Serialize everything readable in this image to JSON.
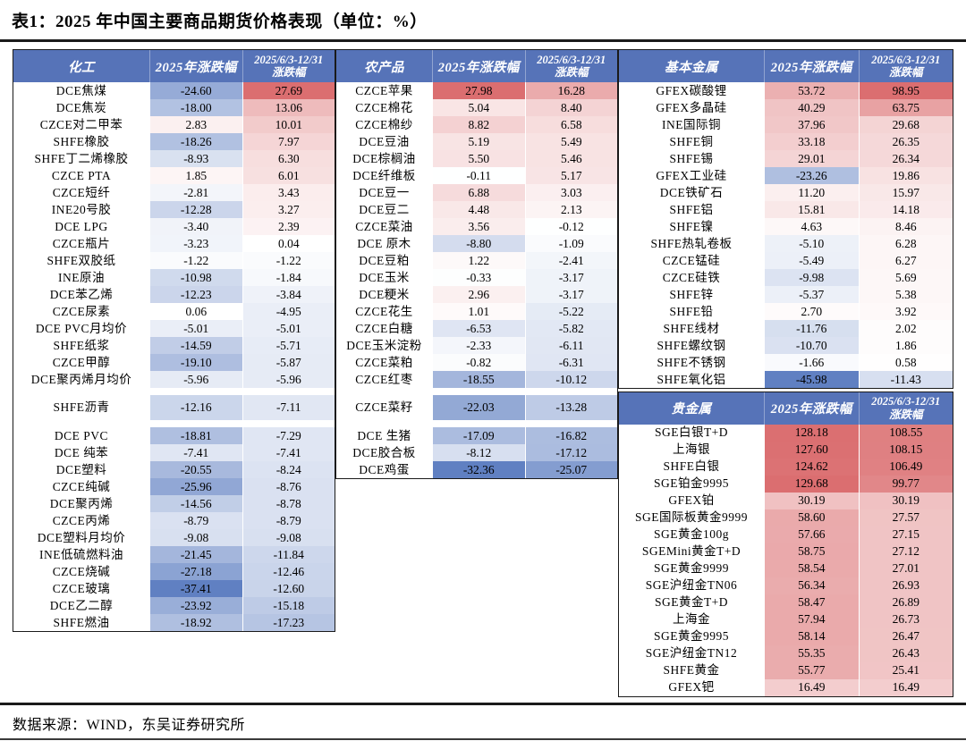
{
  "title": "表1：2025 年中国主要商品期货价格表现（单位：%）",
  "source": "数据来源：WIND，东吴证券研究所",
  "headers": {
    "change_2025": "2025年涨跌幅",
    "change_period_line1": "2025/6/3-12/31",
    "change_period_line2": "涨跌幅"
  },
  "colors": {
    "header_bg": "#5673B8",
    "positive_max": "#DB6E70",
    "negative_max": "#6080C2",
    "border": "#1A1A1A"
  },
  "tables": [
    {
      "name": "化工",
      "rows": [
        [
          "DCE焦煤",
          "-24.60",
          "27.69"
        ],
        [
          "DCE焦炭",
          "-18.00",
          "13.06"
        ],
        [
          "CZCE对二甲苯",
          "2.83",
          "10.01"
        ],
        [
          "SHFE橡胶",
          "-18.26",
          "7.97"
        ],
        [
          "SHFE丁二烯橡胶",
          "-8.93",
          "6.30"
        ],
        [
          "CZCE PTA",
          "1.85",
          "6.01"
        ],
        [
          "CZCE短纤",
          "-2.81",
          "3.43"
        ],
        [
          "INE20号胶",
          "-12.28",
          "3.27"
        ],
        [
          "DCE LPG",
          "-3.40",
          "2.39"
        ],
        [
          "CZCE瓶片",
          "-3.23",
          "0.04"
        ],
        [
          "SHFE双胶纸",
          "-1.22",
          "-1.22"
        ],
        [
          "INE原油",
          "-10.98",
          "-1.84"
        ],
        [
          "DCE苯乙烯",
          "-12.23",
          "-3.84"
        ],
        [
          "CZCE尿素",
          "0.06",
          "-4.95"
        ],
        [
          "DCE PVC月均价",
          "-5.01",
          "-5.01"
        ],
        [
          "SHFE纸浆",
          "-14.59",
          "-5.71"
        ],
        [
          "CZCE甲醇",
          "-19.10",
          "-5.87"
        ],
        [
          "DCE聚丙烯月均价",
          "-5.96",
          "-5.96"
        ],
        [
          "SHFE沥青",
          "-12.16",
          "-7.11",
          "tall"
        ],
        [
          "DCE PVC",
          "-18.81",
          "-7.29"
        ],
        [
          "DCE 纯苯",
          "-7.41",
          "-7.41"
        ],
        [
          "DCE塑料",
          "-20.55",
          "-8.24"
        ],
        [
          "CZCE纯碱",
          "-25.96",
          "-8.76"
        ],
        [
          "DCE聚丙烯",
          "-14.56",
          "-8.78"
        ],
        [
          "CZCE丙烯",
          "-8.79",
          "-8.79"
        ],
        [
          "DCE塑料月均价",
          "-9.08",
          "-9.08"
        ],
        [
          "INE低硫燃料油",
          "-21.45",
          "-11.84"
        ],
        [
          "CZCE烧碱",
          "-27.18",
          "-12.46"
        ],
        [
          "CZCE玻璃",
          "-37.41",
          "-12.60"
        ],
        [
          "DCE乙二醇",
          "-23.92",
          "-15.18"
        ],
        [
          "SHFE燃油",
          "-18.92",
          "-17.23"
        ]
      ]
    },
    {
      "name": "农产品",
      "rows": [
        [
          "CZCE苹果",
          "27.98",
          "16.28"
        ],
        [
          "CZCE棉花",
          "5.04",
          "8.40"
        ],
        [
          "CZCE棉纱",
          "8.82",
          "6.58"
        ],
        [
          "DCE豆油",
          "5.19",
          "5.49"
        ],
        [
          "DCE棕榈油",
          "5.50",
          "5.46"
        ],
        [
          "DCE纤维板",
          "-0.11",
          "5.17"
        ],
        [
          "DCE豆一",
          "6.88",
          "3.03"
        ],
        [
          "DCE豆二",
          "4.48",
          "2.13"
        ],
        [
          "CZCE菜油",
          "3.56",
          "-0.12"
        ],
        [
          "DCE 原木",
          "-8.80",
          "-1.09"
        ],
        [
          "DCE豆粕",
          "1.22",
          "-2.41"
        ],
        [
          "DCE玉米",
          "-0.33",
          "-3.17"
        ],
        [
          "DCE粳米",
          "2.96",
          "-3.17"
        ],
        [
          "CZCE花生",
          "1.01",
          "-5.22"
        ],
        [
          "CZCE白糖",
          "-6.53",
          "-5.82"
        ],
        [
          "DCE玉米淀粉",
          "-2.33",
          "-6.11"
        ],
        [
          "CZCE菜粕",
          "-0.82",
          "-6.31"
        ],
        [
          "CZCE红枣",
          "-18.55",
          "-10.12"
        ],
        [
          "CZCE菜籽",
          "-22.03",
          "-13.28",
          "tall"
        ],
        [
          "DCE 生猪",
          "-17.09",
          "-16.82"
        ],
        [
          "DCE胶合板",
          "-8.12",
          "-17.12"
        ],
        [
          "DCE鸡蛋",
          "-32.36",
          "-25.07"
        ]
      ]
    },
    {
      "name": "基本金属",
      "rows": [
        [
          "GFEX碳酸锂",
          "53.72",
          "98.95"
        ],
        [
          "GFEX多晶硅",
          "40.29",
          "63.75"
        ],
        [
          "INE国际铜",
          "37.96",
          "29.68"
        ],
        [
          "SHFE铜",
          "33.18",
          "26.35"
        ],
        [
          "SHFE锡",
          "29.01",
          "26.34"
        ],
        [
          "GFEX工业硅",
          "-23.26",
          "19.86"
        ],
        [
          "DCE铁矿石",
          "11.20",
          "15.97"
        ],
        [
          "SHFE铝",
          "15.81",
          "14.18"
        ],
        [
          "SHFE镍",
          "4.63",
          "8.46"
        ],
        [
          "SHFE热轧卷板",
          "-5.10",
          "6.28"
        ],
        [
          "CZCE锰硅",
          "-5.49",
          "6.27"
        ],
        [
          "CZCE硅铁",
          "-9.98",
          "5.69"
        ],
        [
          "SHFE锌",
          "-5.37",
          "5.38"
        ],
        [
          "SHFE铅",
          "2.70",
          "3.92"
        ],
        [
          "SHFE线材",
          "-11.76",
          "2.02"
        ],
        [
          "SHFE螺纹钢",
          "-10.70",
          "1.86"
        ],
        [
          "SHFE不锈钢",
          "-1.66",
          "0.58"
        ],
        [
          "SHFE氧化铝",
          "-45.98",
          "-11.43"
        ]
      ]
    },
    {
      "name": "贵金属",
      "rows": [
        [
          "SGE白银T+D",
          "128.18",
          "108.55"
        ],
        [
          "上海银",
          "127.60",
          "108.15"
        ],
        [
          "SHFE白银",
          "124.62",
          "106.49"
        ],
        [
          "SGE铂金9995",
          "129.68",
          "99.77"
        ],
        [
          "GFEX铂",
          "30.19",
          "30.19"
        ],
        [
          "SGE国际板黄金9999",
          "58.60",
          "27.57"
        ],
        [
          "SGE黄金100g",
          "57.66",
          "27.15"
        ],
        [
          "SGEMini黄金T+D",
          "58.75",
          "27.12"
        ],
        [
          "SGE黄金9999",
          "58.54",
          "27.01"
        ],
        [
          "SGE沪纽金TN06",
          "56.34",
          "26.93"
        ],
        [
          "SGE黄金T+D",
          "58.47",
          "26.89"
        ],
        [
          "上海金",
          "57.94",
          "26.73"
        ],
        [
          "SGE黄金9995",
          "58.14",
          "26.47"
        ],
        [
          "SGE沪纽金TN12",
          "55.35",
          "26.43"
        ],
        [
          "SHFE黄金",
          "55.77",
          "25.41"
        ],
        [
          "GFEX钯",
          "16.49",
          "16.49"
        ]
      ]
    }
  ]
}
